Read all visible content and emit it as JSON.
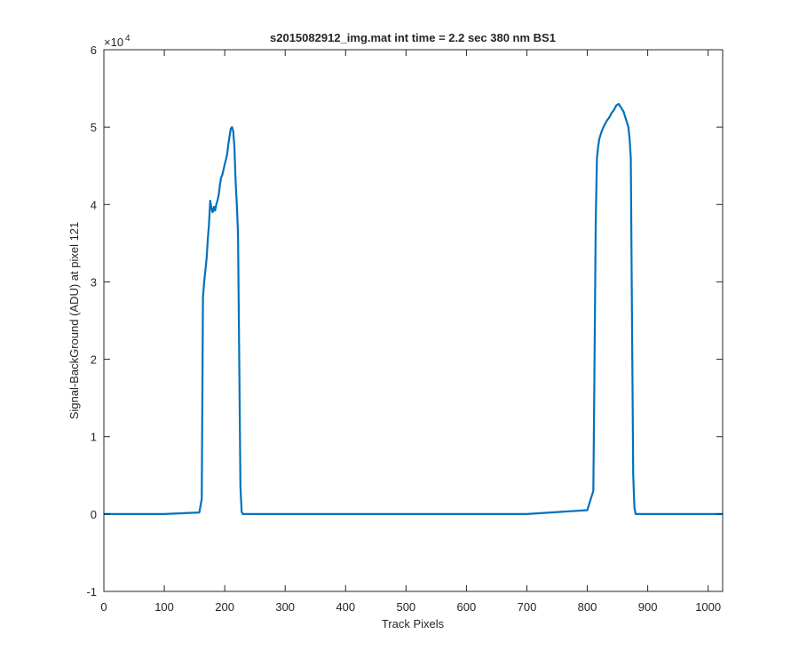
{
  "chart_data": {
    "type": "line",
    "title": "s2015082912_img.mat int time = 2.2 sec  380 nm BS1",
    "xlabel": "Track Pixels",
    "ylabel": "Signal-BackGround (ADU) at pixel 121",
    "xlim": [
      0,
      1024
    ],
    "ylim": [
      -1,
      6
    ],
    "y_multiplier_label": "×10",
    "y_multiplier_exponent": "4",
    "x_ticks": [
      0,
      100,
      200,
      300,
      400,
      500,
      600,
      700,
      800,
      900,
      1000
    ],
    "x_tick_labels": [
      "0",
      "100",
      "200",
      "300",
      "400",
      "500",
      "600",
      "700",
      "800",
      "900",
      "1000"
    ],
    "y_ticks": [
      -1,
      0,
      1,
      2,
      3,
      4,
      5,
      6
    ],
    "y_tick_labels": [
      "-1",
      "0",
      "1",
      "2",
      "3",
      "4",
      "5",
      "6"
    ],
    "grid": false,
    "series_color": "#0072BD",
    "series": [
      {
        "x": [
          0,
          100,
          158,
          162,
          164,
          166,
          168,
          170,
          172,
          174,
          176,
          178,
          180,
          182,
          184,
          186,
          188,
          190,
          192,
          194,
          196,
          198,
          200,
          202,
          204,
          206,
          208,
          210,
          212,
          214,
          216,
          218,
          220,
          222,
          224,
          226,
          228,
          230,
          232,
          300,
          400,
          500,
          600,
          700,
          800,
          810,
          812,
          814,
          816,
          818,
          820,
          824,
          828,
          832,
          836,
          840,
          844,
          848,
          852,
          856,
          860,
          864,
          868,
          870,
          872,
          874,
          876,
          878,
          880,
          900,
          1000,
          1024
        ],
        "values": [
          0,
          0,
          0.02,
          0.2,
          2.8,
          3.0,
          3.15,
          3.3,
          3.55,
          3.75,
          4.05,
          3.95,
          3.9,
          3.97,
          3.92,
          4.0,
          4.05,
          4.12,
          4.25,
          4.35,
          4.38,
          4.45,
          4.52,
          4.58,
          4.65,
          4.78,
          4.88,
          4.98,
          5.0,
          4.95,
          4.75,
          4.3,
          4.0,
          3.62,
          2.0,
          0.35,
          0.03,
          0,
          0,
          0,
          0,
          0,
          0,
          0,
          0.05,
          0.3,
          2.0,
          3.8,
          4.6,
          4.75,
          4.85,
          4.95,
          5.02,
          5.08,
          5.12,
          5.18,
          5.22,
          5.28,
          5.3,
          5.25,
          5.2,
          5.1,
          5.0,
          4.85,
          4.6,
          2.5,
          0.5,
          0.08,
          0,
          0,
          0,
          0
        ]
      }
    ]
  }
}
